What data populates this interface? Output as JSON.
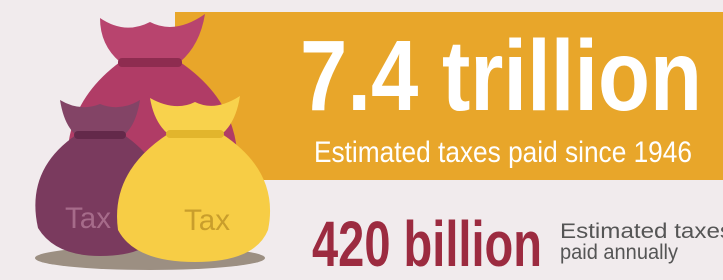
{
  "headline": {
    "value": "7.4 trillion",
    "caption": "Estimated taxes paid since 1946"
  },
  "secondary": {
    "value": "420 billion",
    "caption_lines": [
      "Estimated taxes",
      "paid annually"
    ]
  },
  "bags": [
    {
      "label": "Tax"
    },
    {
      "label": "Tax"
    }
  ]
}
